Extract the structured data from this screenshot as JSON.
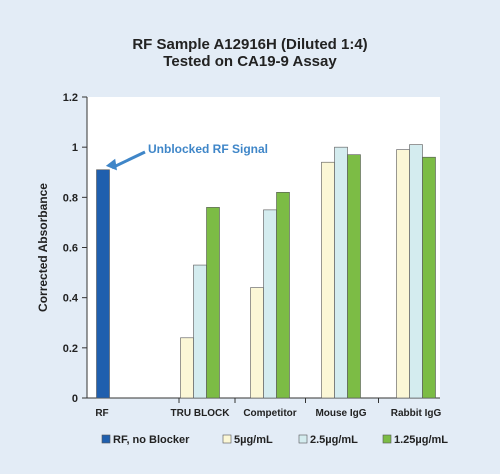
{
  "chart_data": {
    "type": "bar",
    "title": [
      "RF Sample A12916H (Diluted 1:4)",
      "Tested on CA19-9 Assay"
    ],
    "ylabel": "Corrected Absorbance",
    "xlabel": "",
    "ylim": [
      0,
      1.2
    ],
    "yticks": [
      0,
      0.2,
      0.4,
      0.6,
      0.8,
      1,
      1.2
    ],
    "categories": [
      "RF",
      "TRU BLOCK",
      "Competitor",
      "Mouse IgG",
      "Rabbit IgG"
    ],
    "grid": false,
    "legend_position": "bottom",
    "series": [
      {
        "name": "RF, no Blocker",
        "color": "#1f5fae",
        "values": [
          0.91,
          null,
          null,
          null,
          null
        ]
      },
      {
        "name": "5µg/mL",
        "color": "#fbf7d6",
        "values": [
          null,
          0.24,
          0.44,
          0.94,
          0.99
        ]
      },
      {
        "name": "2.5µg/mL",
        "color": "#d4ecef",
        "values": [
          null,
          0.53,
          0.75,
          1.0,
          1.01
        ]
      },
      {
        "name": "1.25µg/mL",
        "color": "#7cbc45",
        "values": [
          null,
          0.76,
          0.82,
          0.97,
          0.96
        ]
      }
    ],
    "annotations": [
      {
        "text": "Unblocked RF Signal",
        "target_category": "RF"
      }
    ]
  }
}
